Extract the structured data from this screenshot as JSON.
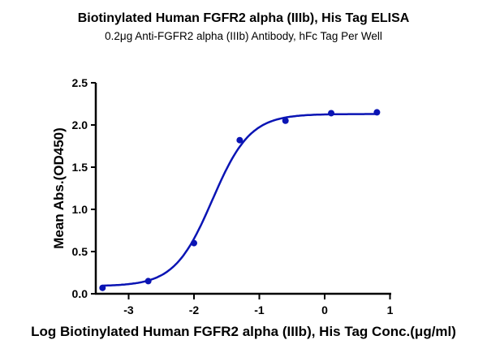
{
  "chart_data": {
    "type": "scatter",
    "title": "Biotinylated Human FGFR2 alpha (IIIb), His Tag ELISA",
    "subtitle": "0.2μg Anti-FGFR2 alpha (IIIb) Antibody, hFc Tag Per Well",
    "xlabel": "Log Biotinylated Human FGFR2 alpha (IIIb), His Tag Conc.(μg/ml)",
    "ylabel": "Mean Abs.(OD450)",
    "xlim": [
      -3.5,
      1
    ],
    "ylim": [
      0,
      2.5
    ],
    "xticks": [
      "-3",
      "-2",
      "-1",
      "0",
      "1"
    ],
    "yticks": [
      "0.0",
      "0.5",
      "1.0",
      "1.5",
      "2.0",
      "2.5"
    ],
    "grid": false,
    "series": [
      {
        "name": "Mean Abs.(OD450)",
        "color": "#0a14b4",
        "x": [
          -3.4,
          -2.7,
          -2.0,
          -1.3,
          -0.6,
          0.1,
          0.8
        ],
        "y": [
          0.07,
          0.15,
          0.6,
          1.82,
          2.05,
          2.14,
          2.15
        ]
      }
    ],
    "fit": {
      "type": "4PL sigmoid",
      "bottom": 0.09,
      "top": 2.13,
      "logEC50": -1.72,
      "hill": 1.5
    }
  }
}
